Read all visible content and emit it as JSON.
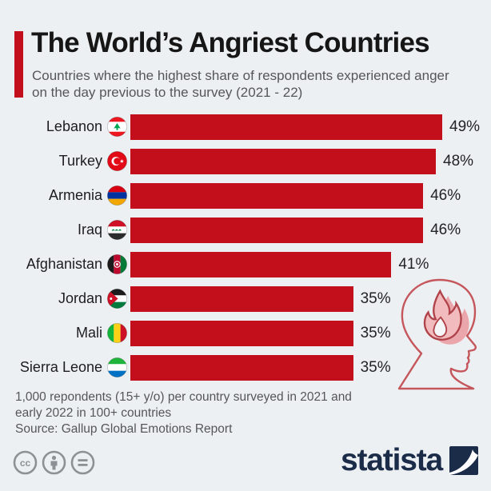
{
  "header": {
    "title": "The World’s Angriest Countries",
    "subtitle": "Countries where the highest share of respondents experienced anger on the day previous to the survey (2021 - 22)"
  },
  "chart_data": {
    "type": "bar",
    "orientation": "horizontal",
    "title": "The World’s Angriest Countries",
    "categories": [
      "Lebanon",
      "Turkey",
      "Armenia",
      "Iraq",
      "Afghanistan",
      "Jordan",
      "Mali",
      "Sierra Leone"
    ],
    "values": [
      49,
      48,
      46,
      46,
      41,
      35,
      35,
      35
    ],
    "value_labels": [
      "49%",
      "48%",
      "46%",
      "46%",
      "41%",
      "35%",
      "35%",
      "35%"
    ],
    "unit": "%",
    "xlim": [
      0,
      49
    ],
    "grid": false,
    "legend": false,
    "bar_color": "#c30f1c",
    "flags": [
      "lebanon",
      "turkey",
      "armenia",
      "iraq",
      "afghanistan",
      "jordan",
      "mali",
      "sierra-leone"
    ]
  },
  "footer": {
    "note": "1,000 repondents (15+ y/o) per country surveyed in 2021 and early 2022 in 100+ countries",
    "source": "Source: Gallup Global Emotions Report"
  },
  "branding": {
    "logo_text": "statista"
  },
  "license": {
    "icons": [
      "creative-commons",
      "attribution",
      "no-derivatives"
    ]
  },
  "colors": {
    "background": "#edf0f3",
    "bar": "#c30f1c",
    "accent": "#c30f1c",
    "title_text": "#161616",
    "muted_text": "#54565b",
    "brand_navy": "#1b2c49"
  }
}
